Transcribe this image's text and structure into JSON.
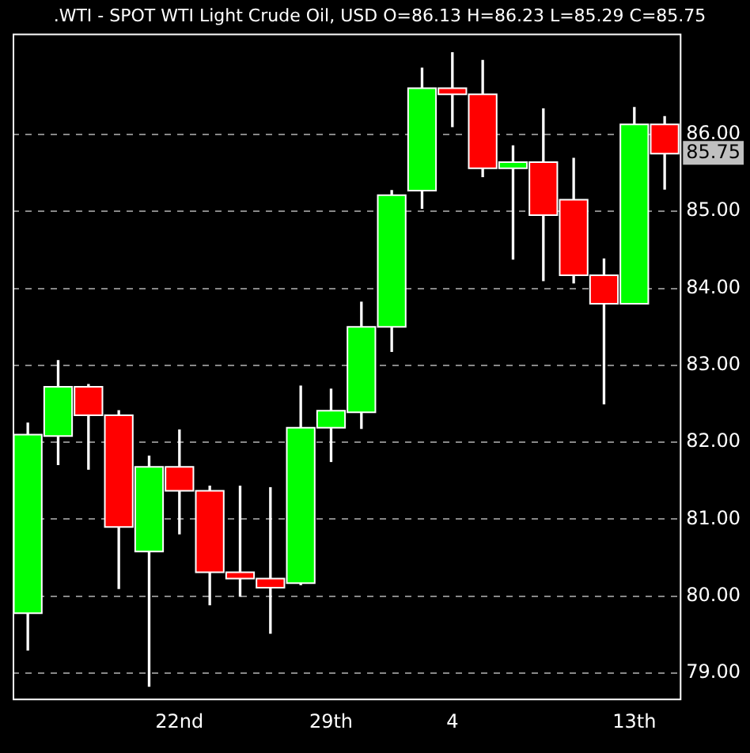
{
  "chart_data": {
    "type": "candlestick",
    "title": ".WTI - SPOT WTI Light Crude Oil, USD O=86.13 H=86.23 L=85.29 C=85.75",
    "categories": [
      null,
      null,
      null,
      null,
      null,
      "22nd",
      null,
      null,
      null,
      null,
      "29th",
      null,
      null,
      null,
      "4",
      null,
      null,
      null,
      null,
      null,
      "13th",
      null
    ],
    "ohlc": [
      [
        79.78,
        82.25,
        79.3,
        82.1
      ],
      [
        82.08,
        83.06,
        81.71,
        82.72
      ],
      [
        82.72,
        82.75,
        81.65,
        82.35
      ],
      [
        82.35,
        82.41,
        80.1,
        80.9
      ],
      [
        80.58,
        81.82,
        78.83,
        81.68
      ],
      [
        81.68,
        82.16,
        80.81,
        81.37
      ],
      [
        81.37,
        81.43,
        79.89,
        80.31
      ],
      [
        80.31,
        81.43,
        80.0,
        80.23
      ],
      [
        80.23,
        81.41,
        79.52,
        80.11
      ],
      [
        80.17,
        82.73,
        80.15,
        82.19
      ],
      [
        82.19,
        82.69,
        81.75,
        82.41
      ],
      [
        82.39,
        83.82,
        82.18,
        83.5
      ],
      [
        83.5,
        85.27,
        83.18,
        85.21
      ],
      [
        85.27,
        86.86,
        85.04,
        86.6
      ],
      [
        86.6,
        87.06,
        86.1,
        86.52
      ],
      [
        86.52,
        86.96,
        85.45,
        85.56
      ],
      [
        85.56,
        85.85,
        84.38,
        85.64
      ],
      [
        85.64,
        86.33,
        84.1,
        84.95
      ],
      [
        85.15,
        85.69,
        84.07,
        84.17
      ],
      [
        84.17,
        84.38,
        82.5,
        83.8
      ],
      [
        83.8,
        86.35,
        83.8,
        86.13
      ],
      [
        86.13,
        86.23,
        85.29,
        85.75
      ]
    ],
    "colors": [
      "#00ff00",
      "#00ff00",
      "#ff0000",
      "#ff0000",
      "#00ff00",
      "#ff0000",
      "#ff0000",
      "#ff0000",
      "#ff0000",
      "#00ff00",
      "#00ff00",
      "#00ff00",
      "#00ff00",
      "#00ff00",
      "#ff0000",
      "#ff0000",
      "#00ff00",
      "#ff0000",
      "#ff0000",
      "#ff0000",
      "#00ff00",
      "#ff0000"
    ],
    "ylim": [
      78.67,
      87.31
    ],
    "yticks": [
      {
        "value": 79,
        "label": "79.00"
      },
      {
        "value": 80,
        "label": "80.00"
      },
      {
        "value": 81,
        "label": "81.00"
      },
      {
        "value": 82,
        "label": "82.00"
      },
      {
        "value": 83,
        "label": "83.00"
      },
      {
        "value": 84,
        "label": "84.00"
      },
      {
        "value": 85,
        "label": "85.00"
      },
      {
        "value": 86,
        "label": "86.00"
      }
    ],
    "grid": "y",
    "annotations": [
      {
        "text": "85.75",
        "y": 85.75
      }
    ]
  }
}
